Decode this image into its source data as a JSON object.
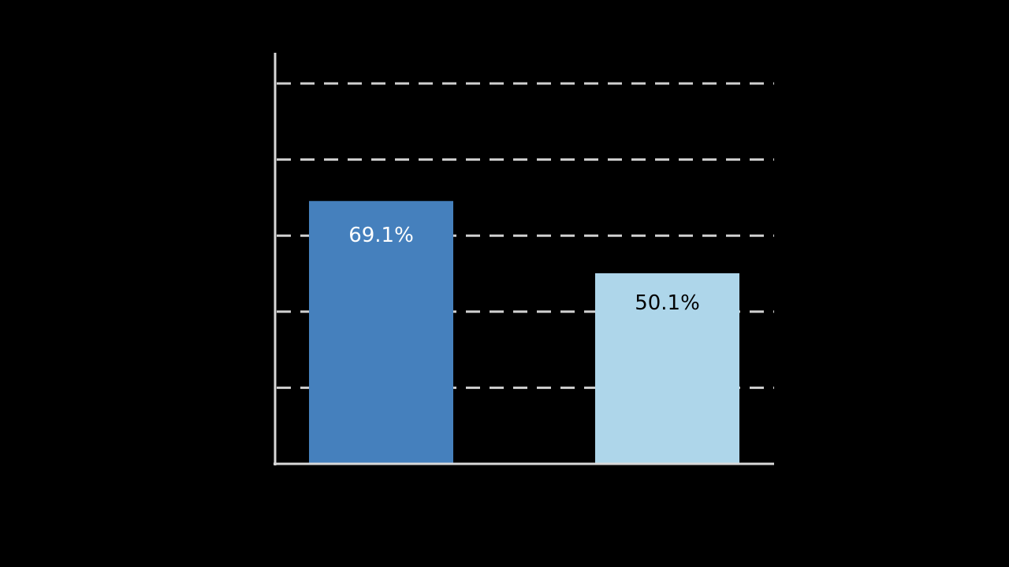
{
  "chart_data": {
    "type": "bar",
    "categories": [
      "",
      ""
    ],
    "values": [
      69.1,
      50.1
    ],
    "data_labels": [
      "69.1%",
      "50.1%"
    ],
    "bar_colors": [
      "#4580bd",
      "#aed6ea"
    ],
    "label_colors": [
      "#ffffff",
      "#000000"
    ],
    "ylim": [
      0,
      100
    ],
    "yticks": [
      20,
      40,
      60,
      80,
      100
    ],
    "grid": true,
    "grid_style": "dashed",
    "grid_color": "#d0d0d0",
    "axis_color": "#d9d9d9",
    "background": "#000000",
    "title": "",
    "xlabel": "",
    "ylabel": ""
  }
}
